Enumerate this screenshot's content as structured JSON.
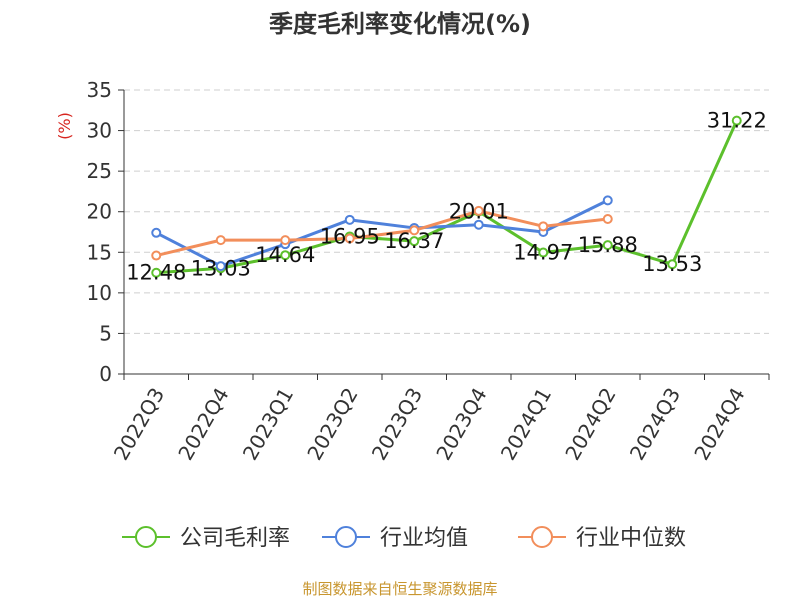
{
  "title": "季度毛利率变化情况(%)",
  "source": "制图数据来自恒生聚源数据库",
  "chart_data": {
    "type": "line",
    "title": "季度毛利率变化情况(%)",
    "ylabel": "(%)",
    "ylim": [
      0,
      35
    ],
    "yticks": [
      0,
      5,
      10,
      15,
      20,
      25,
      30,
      35
    ],
    "grid": true,
    "legend_position": "bottom",
    "categories": [
      "2022Q3",
      "2022Q4",
      "2023Q1",
      "2023Q2",
      "2023Q3",
      "2023Q4",
      "2024Q1",
      "2024Q2",
      "2024Q3",
      "2024Q4"
    ],
    "series": [
      {
        "name": "公司毛利率",
        "color": "#5cc02c",
        "show_labels": true,
        "values": [
          12.48,
          13.03,
          14.64,
          16.95,
          16.37,
          20.01,
          14.97,
          15.88,
          13.53,
          31.22
        ],
        "labels": [
          "12.48",
          "13.03",
          "14.64",
          "16.95",
          "16.37",
          "20.01",
          "14.97",
          "15.88",
          "13.53",
          "31.22"
        ]
      },
      {
        "name": "行业均值",
        "color": "#4f81db",
        "show_labels": false,
        "values": [
          17.4,
          13.3,
          16.0,
          19.0,
          18.0,
          18.4,
          17.5,
          21.4,
          null,
          null
        ]
      },
      {
        "name": "行业中位数",
        "color": "#f28e5b",
        "show_labels": false,
        "values": [
          14.6,
          16.5,
          16.5,
          16.7,
          17.7,
          20.1,
          18.2,
          19.1,
          null,
          null
        ]
      }
    ]
  }
}
